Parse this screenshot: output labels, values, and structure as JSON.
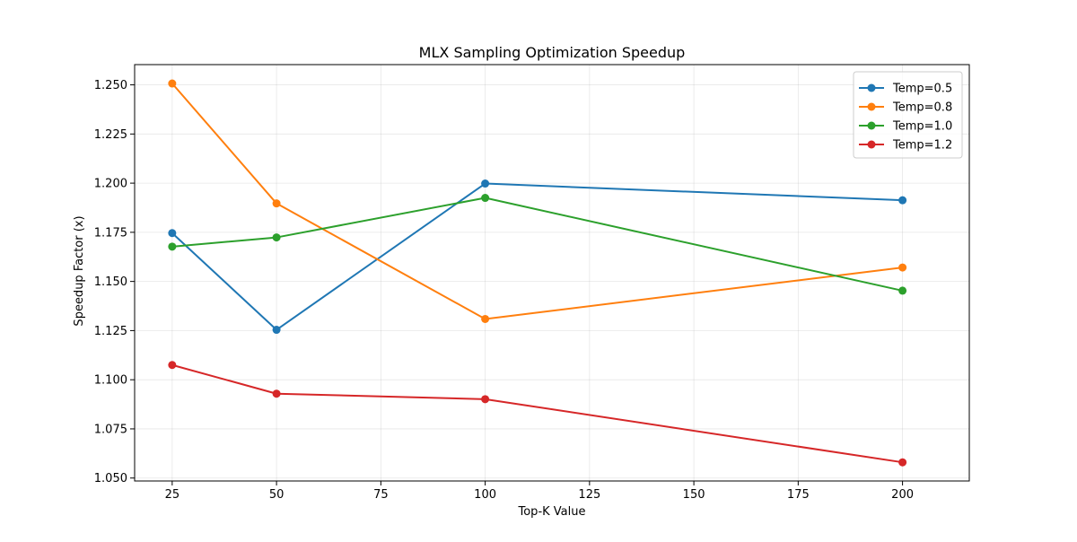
{
  "chart_data": {
    "type": "line",
    "title": "MLX Sampling Optimization Speedup",
    "xlabel": "Top-K Value",
    "ylabel": "Speedup Factor (x)",
    "x": [
      25,
      50,
      100,
      200
    ],
    "xlim": [
      16,
      216
    ],
    "ylim": [
      1.0485,
      1.2603
    ],
    "xticks": [
      25,
      50,
      75,
      100,
      125,
      150,
      175,
      200
    ],
    "yticks": [
      1.05,
      1.075,
      1.1,
      1.125,
      1.15,
      1.175,
      1.2,
      1.225,
      1.25
    ],
    "xtick_labels": [
      "25",
      "50",
      "75",
      "100",
      "125",
      "150",
      "175",
      "200"
    ],
    "ytick_labels": [
      "1.050",
      "1.075",
      "1.100",
      "1.125",
      "1.150",
      "1.175",
      "1.200",
      "1.225",
      "1.250"
    ],
    "grid": true,
    "legend_position": "top-right",
    "series": [
      {
        "name": "Temp=0.5",
        "color": "#1f77b4",
        "values": [
          1.1746,
          1.1254,
          1.1998,
          1.1913
        ]
      },
      {
        "name": "Temp=0.8",
        "color": "#ff7f0e",
        "values": [
          1.2507,
          1.1897,
          1.1309,
          1.1571
        ]
      },
      {
        "name": "Temp=1.0",
        "color": "#2ca02c",
        "values": [
          1.1677,
          1.1724,
          1.1925,
          1.1453
        ]
      },
      {
        "name": "Temp=1.2",
        "color": "#d62728",
        "values": [
          1.1075,
          1.0929,
          1.0901,
          1.058
        ]
      }
    ]
  }
}
